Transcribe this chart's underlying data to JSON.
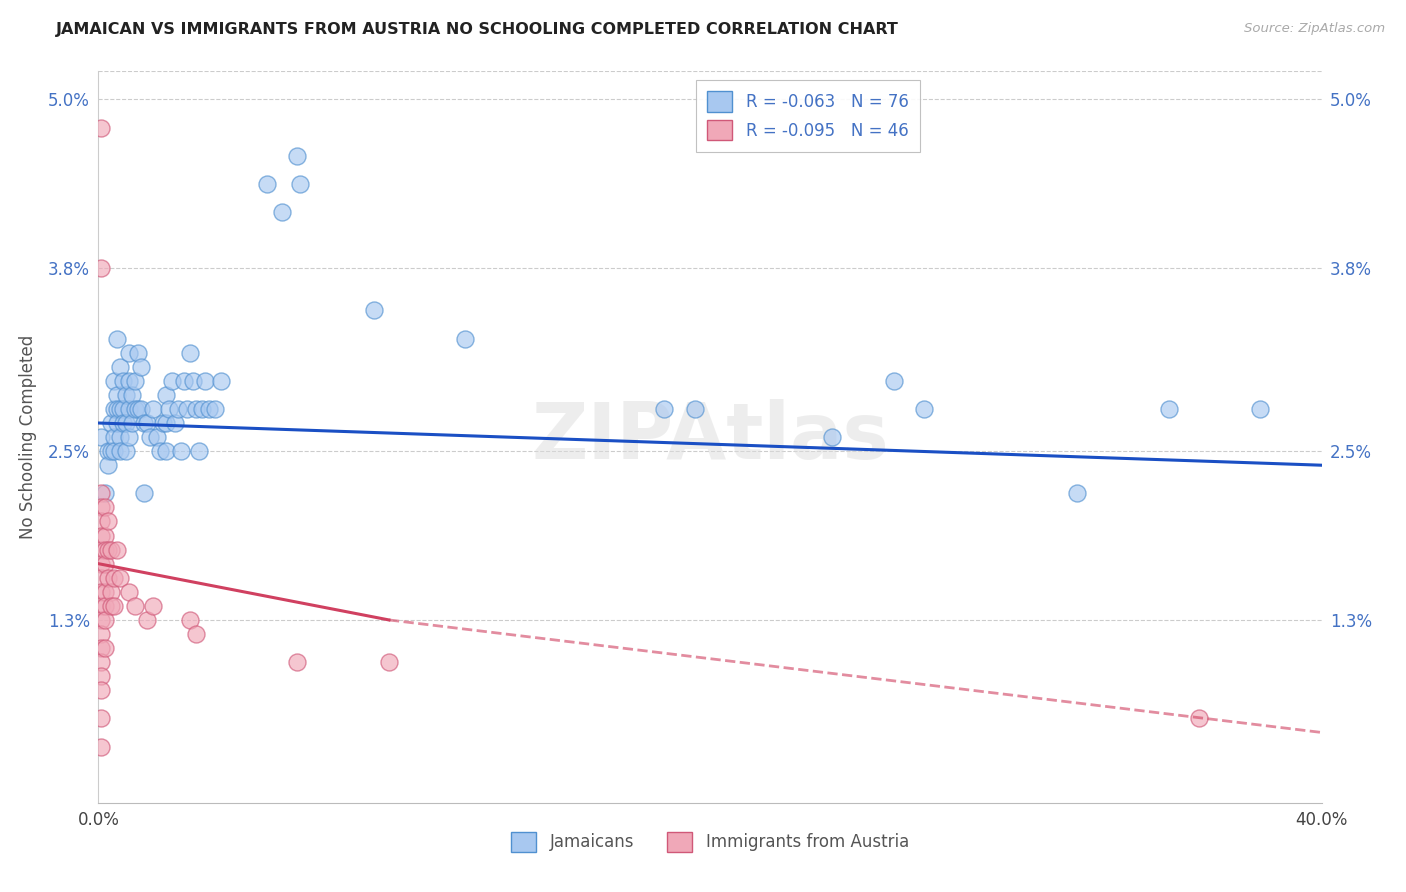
{
  "title": "JAMAICAN VS IMMIGRANTS FROM AUSTRIA NO SCHOOLING COMPLETED CORRELATION CHART",
  "source": "Source: ZipAtlas.com",
  "ylabel": "No Schooling Completed",
  "xlim": [
    0.0,
    0.4
  ],
  "ylim": [
    0.0,
    0.052
  ],
  "yticks": [
    0.0,
    0.013,
    0.025,
    0.038,
    0.05
  ],
  "ytick_labels_left": [
    "",
    "1.3%",
    "2.5%",
    "3.8%",
    "5.0%"
  ],
  "ytick_labels_right": [
    "",
    "1.3%",
    "2.5%",
    "3.8%",
    "5.0%"
  ],
  "xticks": [
    0.0,
    0.08,
    0.16,
    0.24,
    0.32,
    0.4
  ],
  "xtick_labels": [
    "0.0%",
    "",
    "",
    "",
    "",
    "40.0%"
  ],
  "legend_r1": "R = -0.063",
  "legend_n1": "N = 76",
  "legend_r2": "R = -0.095",
  "legend_n2": "N = 46",
  "jamaican_color": "#a8c8f0",
  "jamaican_edge": "#5090d0",
  "austria_color": "#f0a8b8",
  "austria_edge": "#d05878",
  "blue_line_color": "#1a4fc4",
  "pink_line_color": "#d04060",
  "watermark": "ZIPAtlas",
  "blue_scatter": [
    [
      0.001,
      0.026
    ],
    [
      0.002,
      0.022
    ],
    [
      0.003,
      0.025
    ],
    [
      0.003,
      0.024
    ],
    [
      0.004,
      0.027
    ],
    [
      0.004,
      0.025
    ],
    [
      0.005,
      0.03
    ],
    [
      0.005,
      0.028
    ],
    [
      0.005,
      0.026
    ],
    [
      0.005,
      0.025
    ],
    [
      0.006,
      0.033
    ],
    [
      0.006,
      0.029
    ],
    [
      0.006,
      0.028
    ],
    [
      0.006,
      0.027
    ],
    [
      0.007,
      0.031
    ],
    [
      0.007,
      0.028
    ],
    [
      0.007,
      0.026
    ],
    [
      0.007,
      0.025
    ],
    [
      0.008,
      0.03
    ],
    [
      0.008,
      0.028
    ],
    [
      0.008,
      0.027
    ],
    [
      0.009,
      0.029
    ],
    [
      0.009,
      0.027
    ],
    [
      0.009,
      0.025
    ],
    [
      0.01,
      0.032
    ],
    [
      0.01,
      0.03
    ],
    [
      0.01,
      0.028
    ],
    [
      0.01,
      0.026
    ],
    [
      0.011,
      0.029
    ],
    [
      0.011,
      0.027
    ],
    [
      0.012,
      0.03
    ],
    [
      0.012,
      0.028
    ],
    [
      0.013,
      0.032
    ],
    [
      0.013,
      0.028
    ],
    [
      0.014,
      0.031
    ],
    [
      0.014,
      0.028
    ],
    [
      0.015,
      0.027
    ],
    [
      0.015,
      0.022
    ],
    [
      0.016,
      0.027
    ],
    [
      0.017,
      0.026
    ],
    [
      0.018,
      0.028
    ],
    [
      0.019,
      0.026
    ],
    [
      0.02,
      0.025
    ],
    [
      0.021,
      0.027
    ],
    [
      0.022,
      0.029
    ],
    [
      0.022,
      0.027
    ],
    [
      0.022,
      0.025
    ],
    [
      0.023,
      0.028
    ],
    [
      0.024,
      0.03
    ],
    [
      0.025,
      0.027
    ],
    [
      0.026,
      0.028
    ],
    [
      0.027,
      0.025
    ],
    [
      0.028,
      0.03
    ],
    [
      0.029,
      0.028
    ],
    [
      0.03,
      0.032
    ],
    [
      0.031,
      0.03
    ],
    [
      0.032,
      0.028
    ],
    [
      0.033,
      0.025
    ],
    [
      0.034,
      0.028
    ],
    [
      0.035,
      0.03
    ],
    [
      0.036,
      0.028
    ],
    [
      0.038,
      0.028
    ],
    [
      0.04,
      0.03
    ],
    [
      0.055,
      0.044
    ],
    [
      0.06,
      0.042
    ],
    [
      0.065,
      0.046
    ],
    [
      0.066,
      0.044
    ],
    [
      0.09,
      0.035
    ],
    [
      0.12,
      0.033
    ],
    [
      0.185,
      0.028
    ],
    [
      0.195,
      0.028
    ],
    [
      0.24,
      0.026
    ],
    [
      0.26,
      0.03
    ],
    [
      0.27,
      0.028
    ],
    [
      0.32,
      0.022
    ],
    [
      0.35,
      0.028
    ],
    [
      0.38,
      0.028
    ]
  ],
  "pink_scatter": [
    [
      0.001,
      0.048
    ],
    [
      0.001,
      0.038
    ],
    [
      0.001,
      0.022
    ],
    [
      0.001,
      0.021
    ],
    [
      0.001,
      0.02
    ],
    [
      0.001,
      0.019
    ],
    [
      0.001,
      0.018
    ],
    [
      0.001,
      0.017
    ],
    [
      0.001,
      0.016
    ],
    [
      0.001,
      0.015
    ],
    [
      0.001,
      0.014
    ],
    [
      0.001,
      0.013
    ],
    [
      0.001,
      0.012
    ],
    [
      0.001,
      0.011
    ],
    [
      0.001,
      0.01
    ],
    [
      0.001,
      0.009
    ],
    [
      0.001,
      0.008
    ],
    [
      0.001,
      0.006
    ],
    [
      0.001,
      0.004
    ],
    [
      0.002,
      0.021
    ],
    [
      0.002,
      0.019
    ],
    [
      0.002,
      0.018
    ],
    [
      0.002,
      0.017
    ],
    [
      0.002,
      0.015
    ],
    [
      0.002,
      0.014
    ],
    [
      0.002,
      0.013
    ],
    [
      0.002,
      0.011
    ],
    [
      0.003,
      0.02
    ],
    [
      0.003,
      0.018
    ],
    [
      0.003,
      0.016
    ],
    [
      0.004,
      0.018
    ],
    [
      0.004,
      0.015
    ],
    [
      0.004,
      0.014
    ],
    [
      0.005,
      0.016
    ],
    [
      0.005,
      0.014
    ],
    [
      0.006,
      0.018
    ],
    [
      0.007,
      0.016
    ],
    [
      0.01,
      0.015
    ],
    [
      0.012,
      0.014
    ],
    [
      0.016,
      0.013
    ],
    [
      0.018,
      0.014
    ],
    [
      0.03,
      0.013
    ],
    [
      0.032,
      0.012
    ],
    [
      0.065,
      0.01
    ],
    [
      0.095,
      0.01
    ],
    [
      0.36,
      0.006
    ]
  ],
  "blue_trend": {
    "x_start": 0.0,
    "x_end": 0.4,
    "y_start": 0.027,
    "y_end": 0.024
  },
  "pink_trend_solid": {
    "x_start": 0.0,
    "x_end": 0.095,
    "y_start": 0.017,
    "y_end": 0.013
  },
  "pink_trend_dash": {
    "x_start": 0.095,
    "x_end": 0.4,
    "y_start": 0.013,
    "y_end": 0.005
  }
}
